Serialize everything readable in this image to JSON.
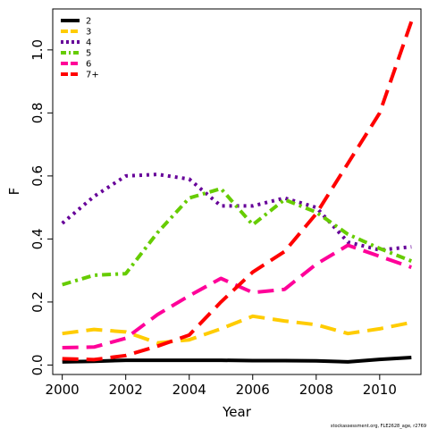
{
  "chart_data": {
    "type": "line",
    "xlabel": "Year",
    "ylabel": "F",
    "xlim": [
      1999.7,
      2011.3
    ],
    "ylim": [
      -0.03,
      1.13
    ],
    "x_ticks": [
      2000,
      2002,
      2004,
      2006,
      2008,
      2010
    ],
    "y_ticks": [
      0.0,
      0.2,
      0.4,
      0.6,
      0.8,
      1.0
    ],
    "y_tick_labels": [
      "0.0",
      "0.2",
      "0.4",
      "0.6",
      "0.8",
      "1.0"
    ],
    "grid": false,
    "legend_position": "top-left",
    "x": [
      2000,
      2001,
      2002,
      2003,
      2004,
      2005,
      2006,
      2007,
      2008,
      2009,
      2010,
      2011
    ],
    "series": [
      {
        "name": "2",
        "color": "#000000",
        "dash": "solid",
        "values": [
          0.01,
          0.012,
          0.015,
          0.015,
          0.015,
          0.015,
          0.014,
          0.014,
          0.013,
          0.01,
          0.018,
          0.024
        ]
      },
      {
        "name": "3",
        "color": "#FFCC00",
        "dash": "long-dash",
        "values": [
          0.1,
          0.113,
          0.105,
          0.07,
          0.08,
          0.115,
          0.155,
          0.14,
          0.128,
          0.1,
          0.115,
          0.135
        ]
      },
      {
        "name": "4",
        "color": "#660099",
        "dash": "dotted",
        "values": [
          0.45,
          0.535,
          0.6,
          0.605,
          0.59,
          0.505,
          0.505,
          0.53,
          0.5,
          0.39,
          0.365,
          0.375
        ]
      },
      {
        "name": "5",
        "color": "#66CC00",
        "dash": "dash-dot",
        "values": [
          0.255,
          0.285,
          0.29,
          0.42,
          0.53,
          0.56,
          0.445,
          0.525,
          0.485,
          0.415,
          0.37,
          0.33
        ]
      },
      {
        "name": "6",
        "color": "#FF0099",
        "dash": "long-dash",
        "values": [
          0.055,
          0.057,
          0.085,
          0.16,
          0.22,
          0.275,
          0.23,
          0.24,
          0.32,
          0.38,
          0.345,
          0.31
        ]
      },
      {
        "name": "7+",
        "color": "#FF0000",
        "dash": "long-dash",
        "values": [
          0.02,
          0.017,
          0.03,
          0.06,
          0.095,
          0.2,
          0.295,
          0.36,
          0.48,
          0.64,
          0.8,
          1.09
        ]
      }
    ]
  },
  "footnote": "stockassessment.org, FLE2628_age, r2769"
}
